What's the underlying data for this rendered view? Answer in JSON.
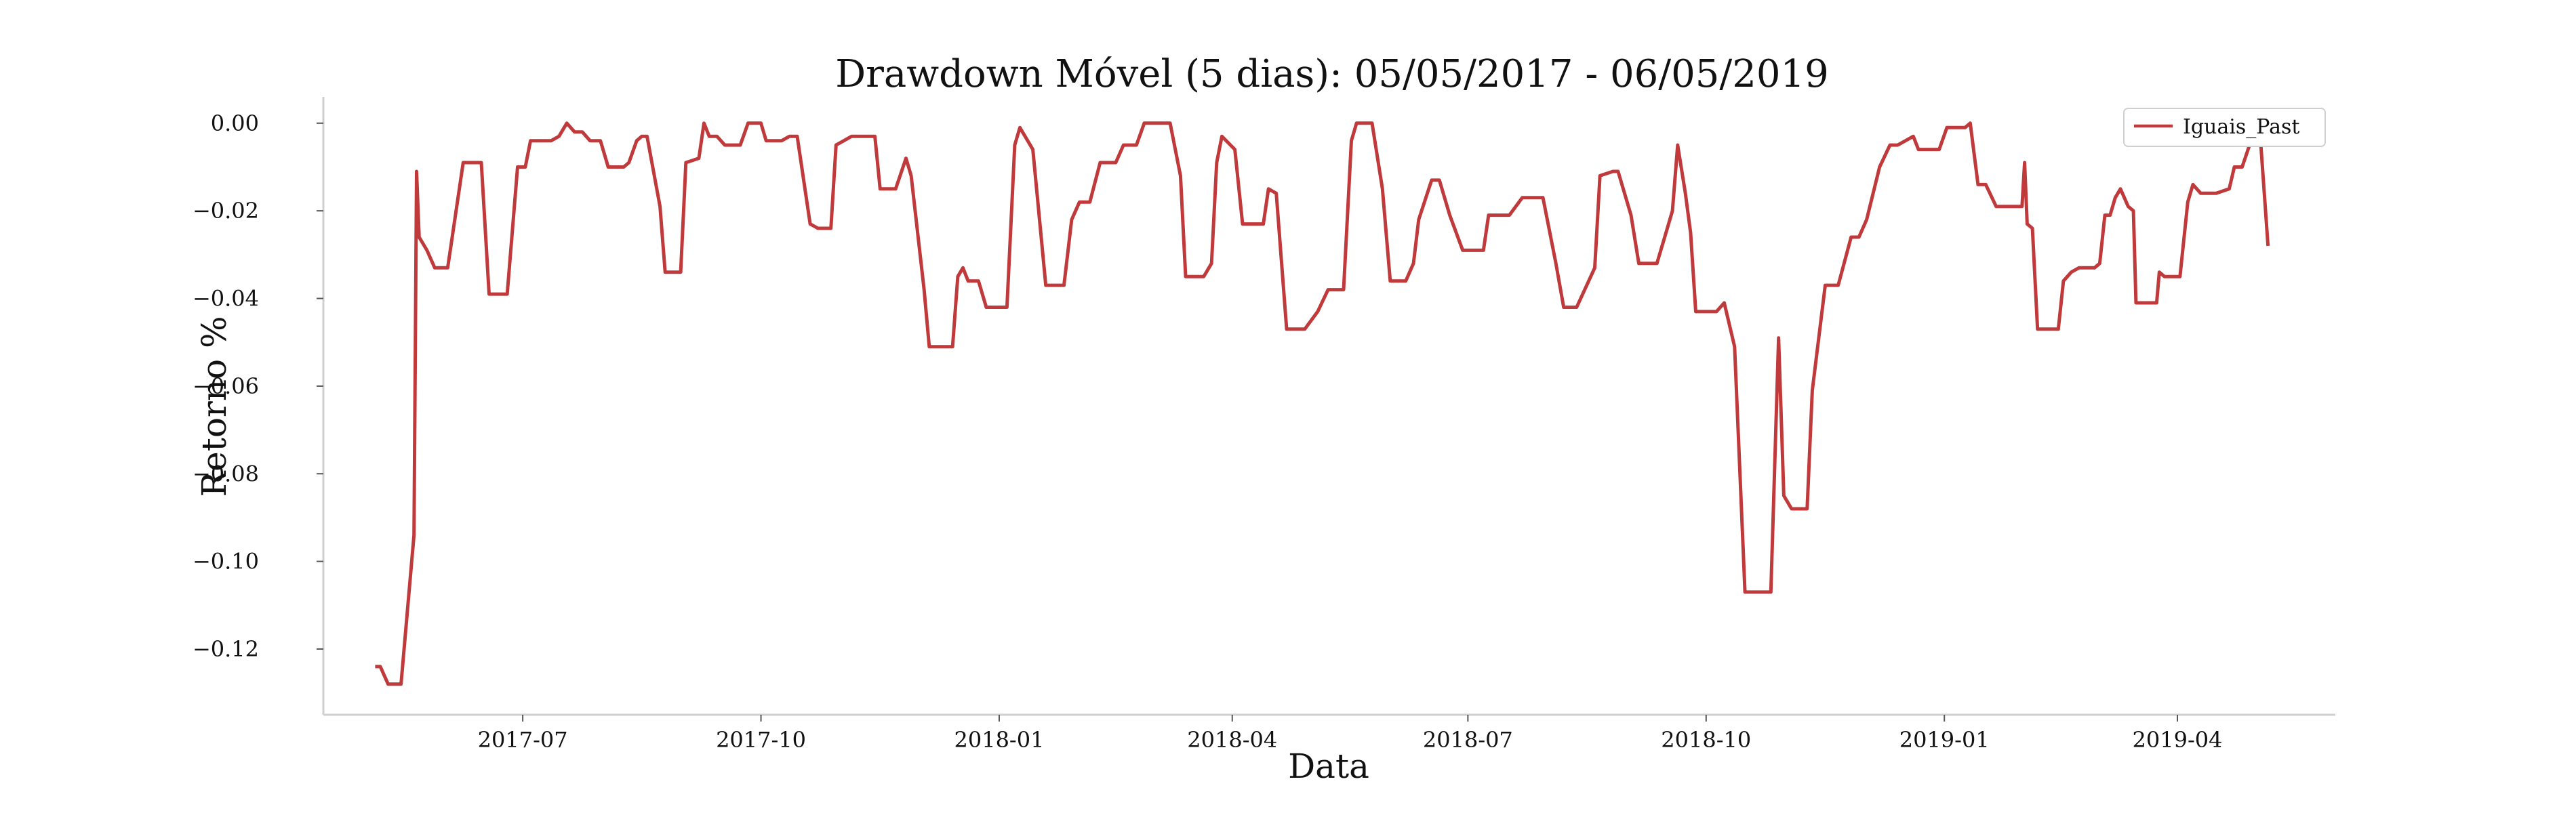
{
  "chart_data": {
    "type": "line",
    "title": "Drawdown Móvel (5 dias): 05/05/2017 - 06/05/2019",
    "xlabel": "Data",
    "ylabel": "Retorno %",
    "x_ticks": [
      "2017-07",
      "2017-10",
      "2018-01",
      "2018-04",
      "2018-07",
      "2018-10",
      "2019-01",
      "2019-04"
    ],
    "y_ticks": [
      "0.00",
      "−0.02",
      "−0.04",
      "−0.06",
      "−0.08",
      "−0.10",
      "−0.12"
    ],
    "ylim": [
      -0.135,
      0.006
    ],
    "xlim": [
      "2017-04-15",
      "2019-06-01"
    ],
    "grid": false,
    "legend_position": "top-right",
    "series": [
      {
        "name": "Iguais_Past",
        "color": "#c0393b",
        "points": [
          [
            "2017-05-05",
            -0.124
          ],
          [
            "2017-05-07",
            -0.124
          ],
          [
            "2017-05-10",
            -0.128
          ],
          [
            "2017-05-12",
            -0.128
          ],
          [
            "2017-05-15",
            -0.128
          ],
          [
            "2017-05-20",
            -0.094
          ],
          [
            "2017-05-21",
            -0.011
          ],
          [
            "2017-05-22",
            -0.026
          ],
          [
            "2017-05-25",
            -0.029
          ],
          [
            "2017-05-28",
            -0.033
          ],
          [
            "2017-06-02",
            -0.033
          ],
          [
            "2017-06-08",
            -0.009
          ],
          [
            "2017-06-15",
            -0.009
          ],
          [
            "2017-06-18",
            -0.039
          ],
          [
            "2017-06-25",
            -0.039
          ],
          [
            "2017-06-29",
            -0.01
          ],
          [
            "2017-07-02",
            -0.01
          ],
          [
            "2017-07-04",
            -0.004
          ],
          [
            "2017-07-12",
            -0.004
          ],
          [
            "2017-07-15",
            -0.003
          ],
          [
            "2017-07-18",
            0.0
          ],
          [
            "2017-07-21",
            -0.002
          ],
          [
            "2017-07-24",
            -0.002
          ],
          [
            "2017-07-27",
            -0.004
          ],
          [
            "2017-07-31",
            -0.004
          ],
          [
            "2017-08-03",
            -0.01
          ],
          [
            "2017-08-09",
            -0.01
          ],
          [
            "2017-08-11",
            -0.009
          ],
          [
            "2017-08-14",
            -0.004
          ],
          [
            "2017-08-16",
            -0.003
          ],
          [
            "2017-08-18",
            -0.003
          ],
          [
            "2017-08-23",
            -0.019
          ],
          [
            "2017-08-25",
            -0.034
          ],
          [
            "2017-08-31",
            -0.034
          ],
          [
            "2017-09-02",
            -0.009
          ],
          [
            "2017-09-07",
            -0.008
          ],
          [
            "2017-09-09",
            0.0
          ],
          [
            "2017-09-11",
            -0.003
          ],
          [
            "2017-09-14",
            -0.003
          ],
          [
            "2017-09-17",
            -0.005
          ],
          [
            "2017-09-23",
            -0.005
          ],
          [
            "2017-09-26",
            0.0
          ],
          [
            "2017-10-01",
            0.0
          ],
          [
            "2017-10-03",
            -0.004
          ],
          [
            "2017-10-09",
            -0.004
          ],
          [
            "2017-10-12",
            -0.003
          ],
          [
            "2017-10-15",
            -0.003
          ],
          [
            "2017-10-20",
            -0.023
          ],
          [
            "2017-10-23",
            -0.024
          ],
          [
            "2017-10-28",
            -0.024
          ],
          [
            "2017-10-30",
            -0.005
          ],
          [
            "2017-11-02",
            -0.004
          ],
          [
            "2017-11-05",
            -0.003
          ],
          [
            "2017-11-14",
            -0.003
          ],
          [
            "2017-11-16",
            -0.015
          ],
          [
            "2017-11-22",
            -0.015
          ],
          [
            "2017-11-26",
            -0.008
          ],
          [
            "2017-11-28",
            -0.012
          ],
          [
            "2017-12-03",
            -0.038
          ],
          [
            "2017-12-05",
            -0.051
          ],
          [
            "2017-12-14",
            -0.051
          ],
          [
            "2017-12-16",
            -0.035
          ],
          [
            "2017-12-18",
            -0.033
          ],
          [
            "2017-12-20",
            -0.036
          ],
          [
            "2017-12-24",
            -0.036
          ],
          [
            "2017-12-27",
            -0.042
          ],
          [
            "2018-01-04",
            -0.042
          ],
          [
            "2018-01-07",
            -0.005
          ],
          [
            "2018-01-09",
            -0.001
          ],
          [
            "2018-01-14",
            -0.006
          ],
          [
            "2018-01-19",
            -0.037
          ],
          [
            "2018-01-26",
            -0.037
          ],
          [
            "2018-01-29",
            -0.022
          ],
          [
            "2018-02-01",
            -0.018
          ],
          [
            "2018-02-05",
            -0.018
          ],
          [
            "2018-02-09",
            -0.009
          ],
          [
            "2018-02-15",
            -0.009
          ],
          [
            "2018-02-18",
            -0.005
          ],
          [
            "2018-02-23",
            -0.005
          ],
          [
            "2018-02-26",
            0.0
          ],
          [
            "2018-03-08",
            0.0
          ],
          [
            "2018-03-12",
            -0.012
          ],
          [
            "2018-03-14",
            -0.035
          ],
          [
            "2018-03-21",
            -0.035
          ],
          [
            "2018-03-24",
            -0.032
          ],
          [
            "2018-03-26",
            -0.009
          ],
          [
            "2018-03-28",
            -0.003
          ],
          [
            "2018-04-02",
            -0.006
          ],
          [
            "2018-04-05",
            -0.023
          ],
          [
            "2018-04-13",
            -0.023
          ],
          [
            "2018-04-15",
            -0.015
          ],
          [
            "2018-04-18",
            -0.016
          ],
          [
            "2018-04-22",
            -0.047
          ],
          [
            "2018-04-29",
            -0.047
          ],
          [
            "2018-05-04",
            -0.043
          ],
          [
            "2018-05-08",
            -0.038
          ],
          [
            "2018-05-14",
            -0.038
          ],
          [
            "2018-05-17",
            -0.004
          ],
          [
            "2018-05-19",
            0.0
          ],
          [
            "2018-05-25",
            0.0
          ],
          [
            "2018-05-29",
            -0.015
          ],
          [
            "2018-06-01",
            -0.036
          ],
          [
            "2018-06-07",
            -0.036
          ],
          [
            "2018-06-10",
            -0.032
          ],
          [
            "2018-06-12",
            -0.022
          ],
          [
            "2018-06-17",
            -0.013
          ],
          [
            "2018-06-20",
            -0.013
          ],
          [
            "2018-06-24",
            -0.021
          ],
          [
            "2018-06-29",
            -0.029
          ],
          [
            "2018-07-07",
            -0.029
          ],
          [
            "2018-07-09",
            -0.021
          ],
          [
            "2018-07-17",
            -0.021
          ],
          [
            "2018-07-22",
            -0.017
          ],
          [
            "2018-07-30",
            -0.017
          ],
          [
            "2018-08-04",
            -0.032
          ],
          [
            "2018-08-07",
            -0.042
          ],
          [
            "2018-08-12",
            -0.042
          ],
          [
            "2018-08-19",
            -0.033
          ],
          [
            "2018-08-21",
            -0.012
          ],
          [
            "2018-08-26",
            -0.011
          ],
          [
            "2018-08-28",
            -0.011
          ],
          [
            "2018-09-02",
            -0.021
          ],
          [
            "2018-09-05",
            -0.032
          ],
          [
            "2018-09-12",
            -0.032
          ],
          [
            "2018-09-15",
            -0.026
          ],
          [
            "2018-09-18",
            -0.02
          ],
          [
            "2018-09-20",
            -0.005
          ],
          [
            "2018-09-23",
            -0.016
          ],
          [
            "2018-09-25",
            -0.025
          ],
          [
            "2018-09-27",
            -0.043
          ],
          [
            "2018-10-05",
            -0.043
          ],
          [
            "2018-10-08",
            -0.041
          ],
          [
            "2018-10-12",
            -0.051
          ],
          [
            "2018-10-16",
            -0.107
          ],
          [
            "2018-10-26",
            -0.107
          ],
          [
            "2018-10-29",
            -0.049
          ],
          [
            "2018-10-31",
            -0.085
          ],
          [
            "2018-11-03",
            -0.088
          ],
          [
            "2018-11-09",
            -0.088
          ],
          [
            "2018-11-11",
            -0.061
          ],
          [
            "2018-11-16",
            -0.037
          ],
          [
            "2018-11-21",
            -0.037
          ],
          [
            "2018-11-26",
            -0.026
          ],
          [
            "2018-11-29",
            -0.026
          ],
          [
            "2018-12-02",
            -0.022
          ],
          [
            "2018-12-07",
            -0.01
          ],
          [
            "2018-12-11",
            -0.005
          ],
          [
            "2018-12-14",
            -0.005
          ],
          [
            "2018-12-17",
            -0.004
          ],
          [
            "2018-12-20",
            -0.003
          ],
          [
            "2018-12-22",
            -0.006
          ],
          [
            "2018-12-30",
            -0.006
          ],
          [
            "2019-01-02",
            -0.001
          ],
          [
            "2019-01-09",
            -0.001
          ],
          [
            "2019-01-11",
            0.0
          ],
          [
            "2019-01-14",
            -0.014
          ],
          [
            "2019-01-17",
            -0.014
          ],
          [
            "2019-01-21",
            -0.019
          ],
          [
            "2019-01-31",
            -0.019
          ],
          [
            "2019-02-01",
            -0.009
          ],
          [
            "2019-02-02",
            -0.023
          ],
          [
            "2019-02-04",
            -0.024
          ],
          [
            "2019-02-06",
            -0.047
          ],
          [
            "2019-02-14",
            -0.047
          ],
          [
            "2019-02-16",
            -0.036
          ],
          [
            "2019-02-19",
            -0.034
          ],
          [
            "2019-02-22",
            -0.033
          ],
          [
            "2019-02-28",
            -0.033
          ],
          [
            "2019-03-02",
            -0.032
          ],
          [
            "2019-03-04",
            -0.021
          ],
          [
            "2019-03-06",
            -0.021
          ],
          [
            "2019-03-08",
            -0.017
          ],
          [
            "2019-03-10",
            -0.015
          ],
          [
            "2019-03-13",
            -0.019
          ],
          [
            "2019-03-15",
            -0.02
          ],
          [
            "2019-03-16",
            -0.041
          ],
          [
            "2019-03-24",
            -0.041
          ],
          [
            "2019-03-25",
            -0.034
          ],
          [
            "2019-03-27",
            -0.035
          ],
          [
            "2019-04-02",
            -0.035
          ],
          [
            "2019-04-05",
            -0.018
          ],
          [
            "2019-04-07",
            -0.014
          ],
          [
            "2019-04-10",
            -0.016
          ],
          [
            "2019-04-16",
            -0.016
          ],
          [
            "2019-04-21",
            -0.015
          ],
          [
            "2019-04-23",
            -0.01
          ],
          [
            "2019-04-26",
            -0.01
          ],
          [
            "2019-04-30",
            -0.003
          ],
          [
            "2019-05-03",
            -0.003
          ],
          [
            "2019-05-06",
            -0.028
          ]
        ]
      }
    ]
  }
}
